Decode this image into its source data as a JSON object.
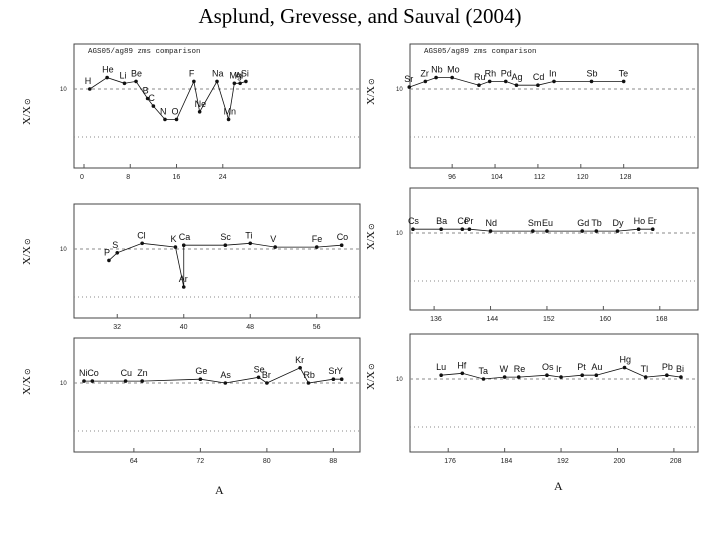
{
  "title": "Asplund, Grevesse, and Sauval (2004)",
  "y_axis_label": "X/X",
  "y_axis_sub": "⊙",
  "x_axis_label": "A",
  "y_level_label": "10",
  "chart_data": [
    {
      "type": "scatter",
      "subtitle": "AGS05/ag89 zms comparison",
      "xlim": [
        0,
        46
      ],
      "x_ticks": [
        0,
        8,
        16,
        24
      ],
      "elements": [
        {
          "s": "H",
          "a": 1,
          "r": 0
        },
        {
          "s": "He",
          "a": 4,
          "r": 0.3
        },
        {
          "s": "Li",
          "a": 7,
          "r": 0.15
        },
        {
          "s": "Be",
          "a": 9,
          "r": 0.2
        },
        {
          "s": "B",
          "a": 11,
          "r": -0.25
        },
        {
          "s": "C",
          "a": 12,
          "r": -0.45
        },
        {
          "s": "N",
          "a": 14,
          "r": -0.8
        },
        {
          "s": "O",
          "a": 16,
          "r": -0.8
        },
        {
          "s": "F",
          "a": 19,
          "r": 0.2
        },
        {
          "s": "Ne",
          "a": 20,
          "r": -0.6
        },
        {
          "s": "Na",
          "a": 23,
          "r": 0.2
        },
        {
          "s": "Mn",
          "a": 25,
          "r": -0.8
        },
        {
          "s": "Mg",
          "a": 26,
          "r": 0.15
        },
        {
          "s": "Al",
          "a": 27,
          "r": 0.15
        },
        {
          "s": "Si",
          "a": 28,
          "r": 0.2
        }
      ]
    },
    {
      "type": "scatter",
      "subtitle": "AGS05/ag89 zms comparison",
      "xlim": [
        90,
        140
      ],
      "x_ticks": [
        96,
        104,
        112,
        120,
        128
      ],
      "elements": [
        {
          "s": "Mo",
          "a": 96,
          "r": 0.3
        },
        {
          "s": "Nb",
          "a": 93,
          "r": 0.3
        },
        {
          "s": "Zr",
          "a": 91,
          "r": 0.2
        },
        {
          "s": "Ru",
          "a": 101,
          "r": 0.1
        },
        {
          "s": "Rh",
          "a": 103,
          "r": 0.2
        },
        {
          "s": "Pd",
          "a": 106,
          "r": 0.2
        },
        {
          "s": "Cd",
          "a": 112,
          "r": 0.1
        },
        {
          "s": "Ag",
          "a": 108,
          "r": 0.1
        },
        {
          "s": "Sr",
          "a": 88,
          "r": 0.05
        },
        {
          "s": "In",
          "a": 115,
          "r": 0.2
        },
        {
          "s": "Te",
          "a": 128,
          "r": 0.2
        },
        {
          "s": "Sb",
          "a": 122,
          "r": 0.2
        }
      ]
    },
    {
      "type": "scatter",
      "xlim": [
        28,
        60
      ],
      "x_ticks": [
        32,
        40,
        48,
        56
      ],
      "elements": [
        {
          "s": "P",
          "a": 31,
          "r": -0.3
        },
        {
          "s": "S",
          "a": 32,
          "r": -0.1
        },
        {
          "s": "Cl",
          "a": 35,
          "r": 0.15
        },
        {
          "s": "Ar",
          "a": 40,
          "r": -1.0
        },
        {
          "s": "K",
          "a": 39,
          "r": 0.05
        },
        {
          "s": "Sc",
          "a": 45,
          "r": 0.1
        },
        {
          "s": "Ca",
          "a": 40,
          "r": 0.1
        },
        {
          "s": "Ti",
          "a": 48,
          "r": 0.15
        },
        {
          "s": "V",
          "a": 51,
          "r": 0.05
        },
        {
          "s": "Fe",
          "a": 56,
          "r": 0.05
        },
        {
          "s": "Co",
          "a": 59,
          "r": 0.1
        }
      ]
    },
    {
      "type": "scatter",
      "xlim": [
        134,
        172
      ],
      "x_ticks": [
        136,
        144,
        152,
        160,
        168
      ],
      "elements": [
        {
          "s": "Ba",
          "a": 137,
          "r": 0.1
        },
        {
          "s": "Cs",
          "a": 133,
          "r": 0.1
        },
        {
          "s": "Ce",
          "a": 140,
          "r": 0.1
        },
        {
          "s": "Pr",
          "a": 141,
          "r": 0.1
        },
        {
          "s": "Nd",
          "a": 144,
          "r": 0.05
        },
        {
          "s": "Eu",
          "a": 152,
          "r": 0.05
        },
        {
          "s": "Gd",
          "a": 157,
          "r": 0.05
        },
        {
          "s": "Sm",
          "a": 150,
          "r": 0.05
        },
        {
          "s": "Dy",
          "a": 162,
          "r": 0.05
        },
        {
          "s": "Tb",
          "a": 159,
          "r": 0.05
        },
        {
          "s": "Ho",
          "a": 165,
          "r": 0.1
        },
        {
          "s": "Er",
          "a": 167,
          "r": 0.1
        }
      ]
    },
    {
      "type": "scatter",
      "xlim": [
        58,
        90
      ],
      "x_ticks": [
        64,
        72,
        80,
        88
      ],
      "elements": [
        {
          "s": "Co",
          "a": 59,
          "r": 0.05
        },
        {
          "s": "Ni",
          "a": 58,
          "r": 0.05
        },
        {
          "s": "Cu",
          "a": 63,
          "r": 0.05
        },
        {
          "s": "Zn",
          "a": 65,
          "r": 0.05
        },
        {
          "s": "Ge",
          "a": 72,
          "r": 0.1
        },
        {
          "s": "As",
          "a": 75,
          "r": 0
        },
        {
          "s": "Se",
          "a": 79,
          "r": 0.15
        },
        {
          "s": "Kr",
          "a": 84,
          "r": 0.4
        },
        {
          "s": "Br",
          "a": 80,
          "r": 0
        },
        {
          "s": "Rb",
          "a": 85,
          "r": 0
        },
        {
          "s": "Sr",
          "a": 88,
          "r": 0.1
        },
        {
          "s": "Y",
          "a": 89,
          "r": 0.1
        }
      ]
    },
    {
      "type": "scatter",
      "xlim": [
        172,
        210
      ],
      "x_ticks": [
        176,
        184,
        192,
        200,
        208
      ],
      "elements": [
        {
          "s": "Hf",
          "a": 178,
          "r": 0.15
        },
        {
          "s": "Lu",
          "a": 175,
          "r": 0.1
        },
        {
          "s": "Ta",
          "a": 181,
          "r": 0
        },
        {
          "s": "W",
          "a": 184,
          "r": 0.05
        },
        {
          "s": "Os",
          "a": 190,
          "r": 0.1
        },
        {
          "s": "Re",
          "a": 186,
          "r": 0.05
        },
        {
          "s": "Pt",
          "a": 195,
          "r": 0.1
        },
        {
          "s": "Ir",
          "a": 192,
          "r": 0.05
        },
        {
          "s": "Au",
          "a": 197,
          "r": 0.1
        },
        {
          "s": "Hg",
          "a": 201,
          "r": 0.3
        },
        {
          "s": "Tl",
          "a": 204,
          "r": 0.05
        },
        {
          "s": "Pb",
          "a": 207,
          "r": 0.1
        },
        {
          "s": "Bi",
          "a": 209,
          "r": 0.05
        }
      ]
    }
  ]
}
